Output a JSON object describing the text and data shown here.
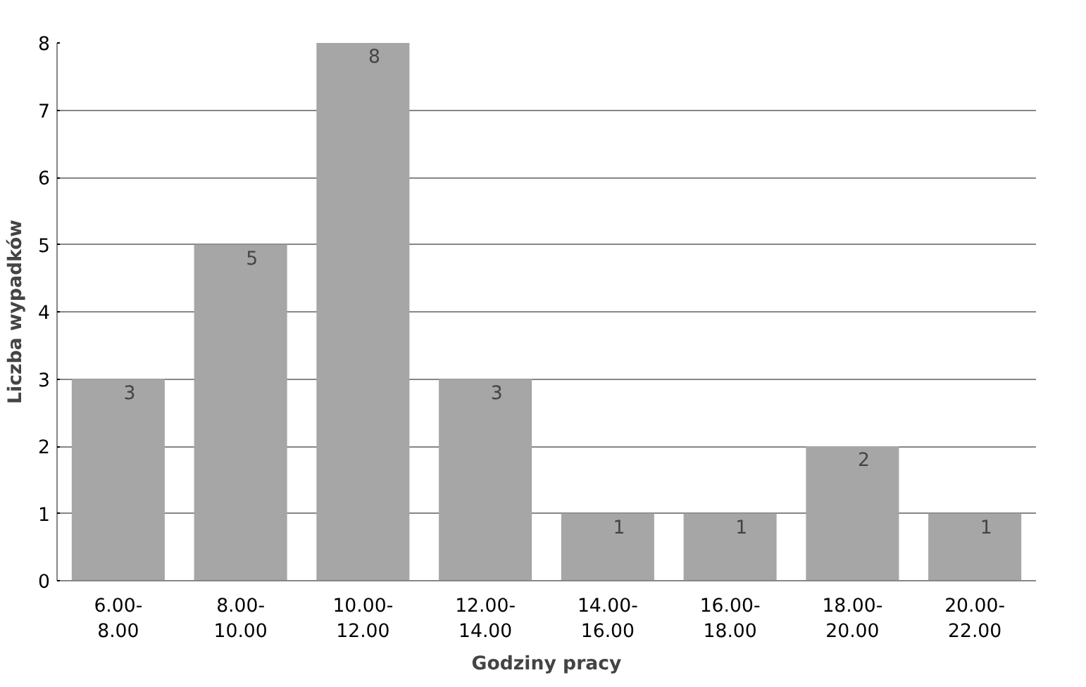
{
  "chart_data": {
    "type": "bar",
    "xlabel": "Godziny pracy",
    "ylabel": "Liczba wypadków",
    "categories": [
      "6.00-8.00",
      "8.00-10.00",
      "10.00-12.00",
      "12.00-14.00",
      "14.00-16.00",
      "16.00-18.00",
      "18.00-20.00",
      "20.00-22.00"
    ],
    "values": [
      3,
      5,
      8,
      3,
      1,
      1,
      2,
      1
    ],
    "color": "#a6a6a6",
    "ylim": [
      0,
      8
    ],
    "yticks": [
      0,
      1,
      2,
      3,
      4,
      5,
      6,
      7,
      8
    ],
    "grid": "y",
    "data_labels": true
  }
}
